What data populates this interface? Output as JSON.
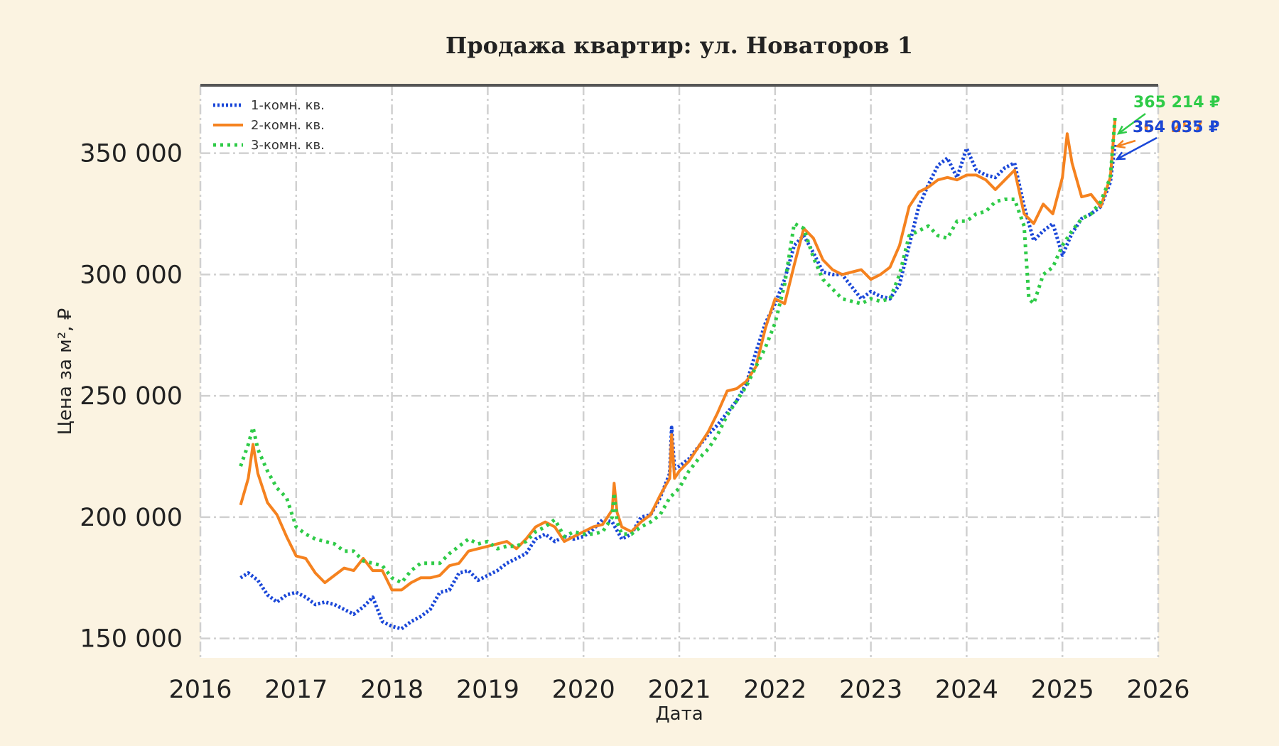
{
  "chart_data": {
    "type": "line",
    "title": "Продажа квартир: ул. Новаторов 1",
    "xlabel": "Дата",
    "ylabel": "Цена за м², ₽",
    "xlim": [
      2016,
      2026
    ],
    "ylim": [
      142000,
      378000
    ],
    "x_ticks": [
      "2016",
      "2017",
      "2018",
      "2019",
      "2020",
      "2021",
      "2022",
      "2023",
      "2024",
      "2025",
      "2026"
    ],
    "y_ticks": [
      {
        "value": 150000,
        "label": "150 000"
      },
      {
        "value": 200000,
        "label": "200 000"
      },
      {
        "value": 250000,
        "label": "250 000"
      },
      {
        "value": 300000,
        "label": "300 000"
      },
      {
        "value": 350000,
        "label": "350 000"
      }
    ],
    "grid": true,
    "legend_position": "top-left",
    "series": [
      {
        "name": "1-комн. кв.",
        "color": "#1a47d8",
        "style": "dotted",
        "x": [
          2016.42,
          2016.5,
          2016.6,
          2016.7,
          2016.8,
          2016.9,
          2017.0,
          2017.1,
          2017.2,
          2017.3,
          2017.4,
          2017.5,
          2017.6,
          2017.7,
          2017.8,
          2017.9,
          2018.0,
          2018.1,
          2018.2,
          2018.3,
          2018.4,
          2018.5,
          2018.6,
          2018.7,
          2018.8,
          2018.9,
          2019.0,
          2019.1,
          2019.2,
          2019.3,
          2019.4,
          2019.5,
          2019.6,
          2019.7,
          2019.8,
          2019.9,
          2020.0,
          2020.1,
          2020.2,
          2020.3,
          2020.4,
          2020.5,
          2020.6,
          2020.7,
          2020.8,
          2020.9,
          2020.92,
          2020.95,
          2021.0,
          2021.1,
          2021.2,
          2021.3,
          2021.4,
          2021.5,
          2021.6,
          2021.7,
          2021.8,
          2021.9,
          2022.0,
          2022.1,
          2022.2,
          2022.3,
          2022.4,
          2022.5,
          2022.6,
          2022.7,
          2022.8,
          2022.9,
          2023.0,
          2023.1,
          2023.2,
          2023.3,
          2023.4,
          2023.5,
          2023.6,
          2023.7,
          2023.8,
          2023.9,
          2024.0,
          2024.1,
          2024.2,
          2024.3,
          2024.4,
          2024.5,
          2024.6,
          2024.7,
          2024.8,
          2024.9,
          2025.0,
          2025.1,
          2025.2,
          2025.3,
          2025.4,
          2025.5,
          2025.55
        ],
        "y": [
          175000,
          177000,
          174000,
          168000,
          165000,
          168000,
          169000,
          167000,
          164000,
          165000,
          164000,
          162000,
          160000,
          163000,
          167000,
          157000,
          155000,
          154000,
          157000,
          159000,
          162000,
          169000,
          170000,
          177000,
          178000,
          174000,
          176000,
          178000,
          181000,
          183000,
          185000,
          191000,
          193000,
          190000,
          192000,
          191000,
          192000,
          195000,
          199000,
          198000,
          191000,
          193000,
          200000,
          201000,
          208000,
          218000,
          237000,
          220000,
          221000,
          224000,
          229000,
          234000,
          238000,
          243000,
          248000,
          255000,
          268000,
          280000,
          288000,
          298000,
          312000,
          316000,
          309000,
          301000,
          300000,
          300000,
          295000,
          290000,
          293000,
          291000,
          290000,
          296000,
          312000,
          328000,
          337000,
          345000,
          348000,
          340000,
          352000,
          343000,
          341000,
          340000,
          344000,
          346000,
          328000,
          314000,
          318000,
          321000,
          308000,
          317000,
          323000,
          325000,
          328000,
          338000,
          354000
        ]
      },
      {
        "name": "2-комн. кв.",
        "color": "#f5821f",
        "style": "solid",
        "x": [
          2016.42,
          2016.5,
          2016.55,
          2016.6,
          2016.7,
          2016.8,
          2016.9,
          2017.0,
          2017.1,
          2017.2,
          2017.3,
          2017.4,
          2017.5,
          2017.6,
          2017.7,
          2017.8,
          2017.9,
          2018.0,
          2018.1,
          2018.2,
          2018.3,
          2018.4,
          2018.5,
          2018.6,
          2018.7,
          2018.8,
          2018.9,
          2019.0,
          2019.1,
          2019.2,
          2019.3,
          2019.4,
          2019.5,
          2019.6,
          2019.7,
          2019.8,
          2019.9,
          2020.0,
          2020.1,
          2020.2,
          2020.3,
          2020.32,
          2020.35,
          2020.4,
          2020.5,
          2020.6,
          2020.7,
          2020.8,
          2020.9,
          2020.92,
          2020.95,
          2021.0,
          2021.1,
          2021.2,
          2021.3,
          2021.4,
          2021.5,
          2021.6,
          2021.7,
          2021.8,
          2021.9,
          2022.0,
          2022.1,
          2022.2,
          2022.3,
          2022.4,
          2022.5,
          2022.6,
          2022.7,
          2022.8,
          2022.9,
          2023.0,
          2023.1,
          2023.2,
          2023.3,
          2023.4,
          2023.5,
          2023.6,
          2023.7,
          2023.8,
          2023.9,
          2024.0,
          2024.1,
          2024.2,
          2024.3,
          2024.4,
          2024.5,
          2024.6,
          2024.7,
          2024.8,
          2024.9,
          2025.0,
          2025.05,
          2025.1,
          2025.2,
          2025.3,
          2025.4,
          2025.5,
          2025.55
        ],
        "y": [
          205000,
          216000,
          230000,
          218000,
          206000,
          201000,
          192000,
          184000,
          183000,
          177000,
          173000,
          176000,
          179000,
          178000,
          183000,
          178000,
          178000,
          170000,
          170000,
          173000,
          175000,
          175000,
          176000,
          180000,
          181000,
          186000,
          187000,
          188000,
          189000,
          190000,
          187000,
          191000,
          196000,
          198000,
          196000,
          190000,
          192000,
          194000,
          196000,
          197000,
          203000,
          214000,
          202000,
          196000,
          194000,
          198000,
          201000,
          209000,
          216000,
          234000,
          216000,
          219000,
          223000,
          229000,
          235000,
          243000,
          252000,
          253000,
          256000,
          262000,
          278000,
          290000,
          288000,
          304000,
          319000,
          315000,
          306000,
          302000,
          300000,
          301000,
          302000,
          298000,
          300000,
          303000,
          312000,
          328000,
          334000,
          336000,
          339000,
          340000,
          339000,
          341000,
          341000,
          339000,
          335000,
          339000,
          343000,
          325000,
          321000,
          329000,
          325000,
          340000,
          358000,
          346000,
          332000,
          333000,
          328000,
          340000,
          364000
        ]
      },
      {
        "name": "3-комн. кв.",
        "color": "#2fcb48",
        "style": "dotted",
        "x": [
          2016.42,
          2016.5,
          2016.55,
          2016.6,
          2016.7,
          2016.8,
          2016.9,
          2017.0,
          2017.1,
          2017.2,
          2017.3,
          2017.4,
          2017.5,
          2017.6,
          2017.7,
          2017.8,
          2017.9,
          2018.0,
          2018.1,
          2018.2,
          2018.3,
          2018.4,
          2018.5,
          2018.6,
          2018.7,
          2018.8,
          2018.9,
          2019.0,
          2019.1,
          2019.2,
          2019.3,
          2019.4,
          2019.5,
          2019.6,
          2019.7,
          2019.8,
          2019.9,
          2020.0,
          2020.1,
          2020.2,
          2020.3,
          2020.32,
          2020.35,
          2020.4,
          2020.5,
          2020.6,
          2020.7,
          2020.8,
          2020.9,
          2021.0,
          2021.1,
          2021.2,
          2021.3,
          2021.4,
          2021.5,
          2021.6,
          2021.7,
          2021.8,
          2021.9,
          2022.0,
          2022.1,
          2022.2,
          2022.3,
          2022.4,
          2022.5,
          2022.6,
          2022.7,
          2022.8,
          2022.9,
          2023.0,
          2023.1,
          2023.2,
          2023.3,
          2023.4,
          2023.5,
          2023.6,
          2023.7,
          2023.8,
          2023.9,
          2024.0,
          2024.1,
          2024.2,
          2024.3,
          2024.4,
          2024.5,
          2024.6,
          2024.65,
          2024.7,
          2024.8,
          2024.9,
          2025.0,
          2025.1,
          2025.2,
          2025.3,
          2025.4,
          2025.5,
          2025.55
        ],
        "y": [
          221000,
          230000,
          237000,
          228000,
          219000,
          212000,
          208000,
          196000,
          193000,
          191000,
          190000,
          189000,
          186000,
          186000,
          182000,
          181000,
          180000,
          175000,
          173000,
          178000,
          181000,
          181000,
          181000,
          185000,
          188000,
          191000,
          189000,
          190000,
          187000,
          188000,
          188000,
          190000,
          194000,
          196000,
          199000,
          192000,
          194000,
          193000,
          193000,
          194000,
          200000,
          210000,
          198000,
          193000,
          193000,
          196000,
          198000,
          201000,
          208000,
          212000,
          219000,
          224000,
          228000,
          234000,
          242000,
          248000,
          254000,
          262000,
          270000,
          280000,
          296000,
          321000,
          319000,
          307000,
          298000,
          294000,
          290000,
          289000,
          288000,
          290000,
          289000,
          290000,
          300000,
          316000,
          318000,
          320000,
          316000,
          315000,
          322000,
          322000,
          325000,
          326000,
          330000,
          331000,
          331000,
          320000,
          290000,
          288000,
          300000,
          303000,
          312000,
          318000,
          323000,
          325000,
          330000,
          340000,
          365000
        ]
      }
    ],
    "annotations": [
      {
        "text": "365 214 ₽",
        "color": "#2fcb48"
      },
      {
        "text": "364 257 ₽",
        "color": "#f5821f"
      },
      {
        "text": "354 035 ₽",
        "color": "#1a47d8"
      }
    ]
  }
}
